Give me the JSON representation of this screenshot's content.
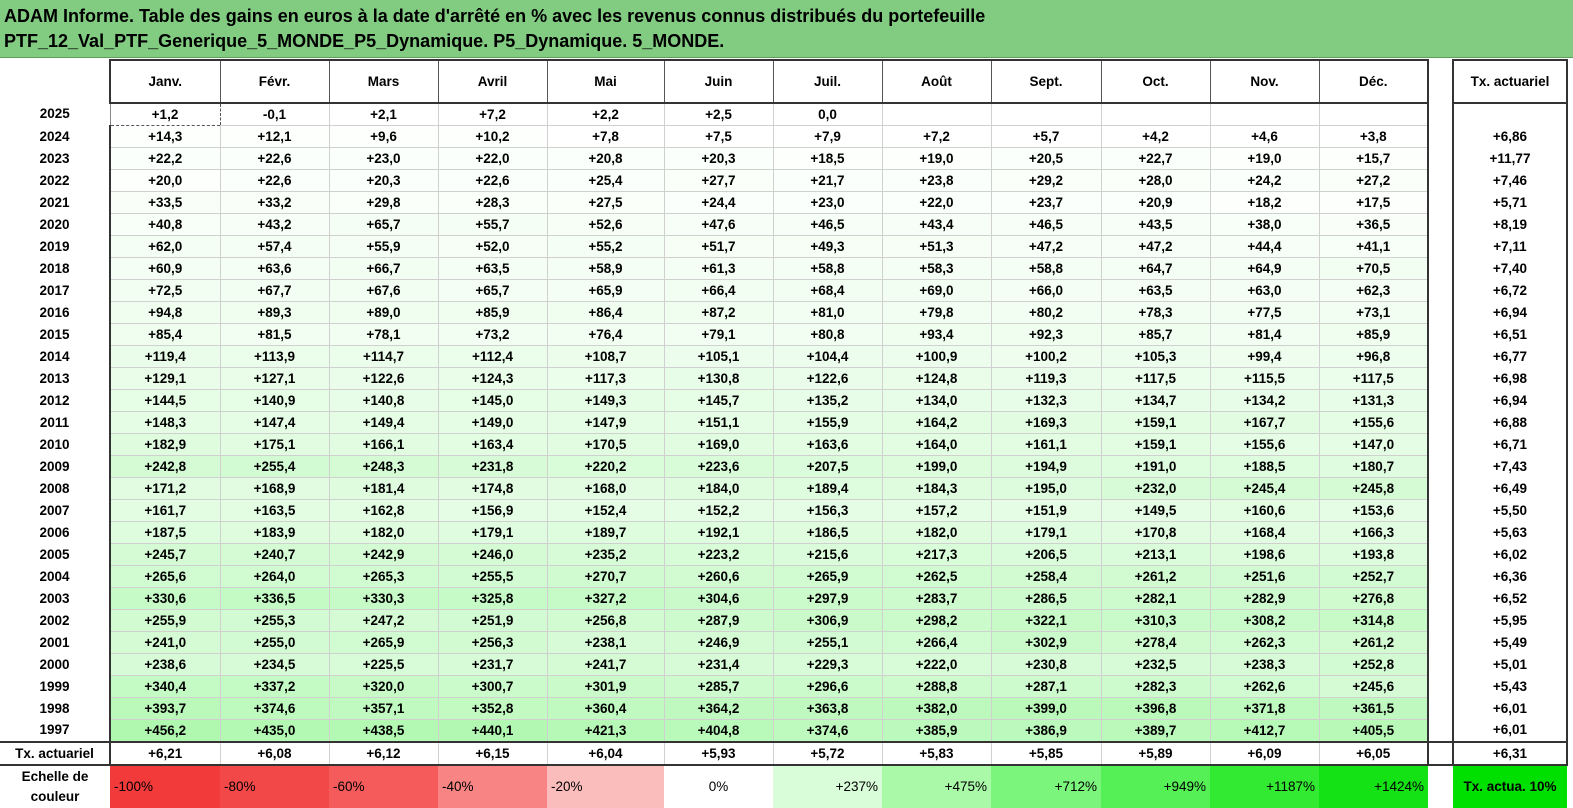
{
  "title": {
    "line1": "ADAM Informe. Table des gains en euros à la date d'arrêté en % avec les revenus connus distribués du portefeuille",
    "line2": "PTF_12_Val_PTF_Generique_5_MONDE_P5_Dynamique. P5_Dynamique. 5_MONDE."
  },
  "months": [
    "Janv.",
    "Févr.",
    "Mars",
    "Avril",
    "Mai",
    "Juin",
    "Juil.",
    "Août",
    "Sept.",
    "Oct.",
    "Nov.",
    "Déc."
  ],
  "actuarial_header": "Tx. actuariel",
  "rows": [
    {
      "year": "2025",
      "values": [
        "+1,2",
        "-0,1",
        "+2,1",
        "+7,2",
        "+2,2",
        "+2,5",
        "0,0",
        "",
        "",
        "",
        "",
        ""
      ],
      "rate": ""
    },
    {
      "year": "2024",
      "values": [
        "+14,3",
        "+12,1",
        "+9,6",
        "+10,2",
        "+7,8",
        "+7,5",
        "+7,9",
        "+7,2",
        "+5,7",
        "+4,2",
        "+4,6",
        "+3,8"
      ],
      "rate": "+6,86"
    },
    {
      "year": "2023",
      "values": [
        "+22,2",
        "+22,6",
        "+23,0",
        "+22,0",
        "+20,8",
        "+20,3",
        "+18,5",
        "+19,0",
        "+20,5",
        "+22,7",
        "+19,0",
        "+15,7"
      ],
      "rate": "+11,77"
    },
    {
      "year": "2022",
      "values": [
        "+20,0",
        "+22,6",
        "+20,3",
        "+22,6",
        "+25,4",
        "+27,7",
        "+21,7",
        "+23,8",
        "+29,2",
        "+28,0",
        "+24,2",
        "+27,2"
      ],
      "rate": "+7,46"
    },
    {
      "year": "2021",
      "values": [
        "+33,5",
        "+33,2",
        "+29,8",
        "+28,3",
        "+27,5",
        "+24,4",
        "+23,0",
        "+22,0",
        "+23,7",
        "+20,9",
        "+18,2",
        "+17,5"
      ],
      "rate": "+5,71"
    },
    {
      "year": "2020",
      "values": [
        "+40,8",
        "+43,2",
        "+65,7",
        "+55,7",
        "+52,6",
        "+47,6",
        "+46,5",
        "+43,4",
        "+46,5",
        "+43,5",
        "+38,0",
        "+36,5"
      ],
      "rate": "+8,19"
    },
    {
      "year": "2019",
      "values": [
        "+62,0",
        "+57,4",
        "+55,9",
        "+52,0",
        "+55,2",
        "+51,7",
        "+49,3",
        "+51,3",
        "+47,2",
        "+47,2",
        "+44,4",
        "+41,1"
      ],
      "rate": "+7,11"
    },
    {
      "year": "2018",
      "values": [
        "+60,9",
        "+63,6",
        "+66,7",
        "+63,5",
        "+58,9",
        "+61,3",
        "+58,8",
        "+58,3",
        "+58,8",
        "+64,7",
        "+64,9",
        "+70,5"
      ],
      "rate": "+7,40"
    },
    {
      "year": "2017",
      "values": [
        "+72,5",
        "+67,7",
        "+67,6",
        "+65,7",
        "+65,9",
        "+66,4",
        "+68,4",
        "+69,0",
        "+66,0",
        "+63,5",
        "+63,0",
        "+62,3"
      ],
      "rate": "+6,72"
    },
    {
      "year": "2016",
      "values": [
        "+94,8",
        "+89,3",
        "+89,0",
        "+85,9",
        "+86,4",
        "+87,2",
        "+81,0",
        "+79,8",
        "+80,2",
        "+78,3",
        "+77,5",
        "+73,1"
      ],
      "rate": "+6,94"
    },
    {
      "year": "2015",
      "values": [
        "+85,4",
        "+81,5",
        "+78,1",
        "+73,2",
        "+76,4",
        "+79,1",
        "+80,8",
        "+93,4",
        "+92,3",
        "+85,7",
        "+81,4",
        "+85,9"
      ],
      "rate": "+6,51"
    },
    {
      "year": "2014",
      "values": [
        "+119,4",
        "+113,9",
        "+114,7",
        "+112,4",
        "+108,7",
        "+105,1",
        "+104,4",
        "+100,9",
        "+100,2",
        "+105,3",
        "+99,4",
        "+96,8"
      ],
      "rate": "+6,77"
    },
    {
      "year": "2013",
      "values": [
        "+129,1",
        "+127,1",
        "+122,6",
        "+124,3",
        "+117,3",
        "+130,8",
        "+122,6",
        "+124,8",
        "+119,3",
        "+117,5",
        "+115,5",
        "+117,5"
      ],
      "rate": "+6,98"
    },
    {
      "year": "2012",
      "values": [
        "+144,5",
        "+140,9",
        "+140,8",
        "+145,0",
        "+149,3",
        "+145,7",
        "+135,2",
        "+134,0",
        "+132,3",
        "+134,7",
        "+134,2",
        "+131,3"
      ],
      "rate": "+6,94"
    },
    {
      "year": "2011",
      "values": [
        "+148,3",
        "+147,4",
        "+149,4",
        "+149,0",
        "+147,9",
        "+151,1",
        "+155,9",
        "+164,2",
        "+169,3",
        "+159,1",
        "+167,7",
        "+155,6"
      ],
      "rate": "+6,88"
    },
    {
      "year": "2010",
      "values": [
        "+182,9",
        "+175,1",
        "+166,1",
        "+163,4",
        "+170,5",
        "+169,0",
        "+163,6",
        "+164,0",
        "+161,1",
        "+159,1",
        "+155,6",
        "+147,0"
      ],
      "rate": "+6,71"
    },
    {
      "year": "2009",
      "values": [
        "+242,8",
        "+255,4",
        "+248,3",
        "+231,8",
        "+220,2",
        "+223,6",
        "+207,5",
        "+199,0",
        "+194,9",
        "+191,0",
        "+188,5",
        "+180,7"
      ],
      "rate": "+7,43"
    },
    {
      "year": "2008",
      "values": [
        "+171,2",
        "+168,9",
        "+181,4",
        "+174,8",
        "+168,0",
        "+184,0",
        "+189,4",
        "+184,3",
        "+195,0",
        "+232,0",
        "+245,4",
        "+245,8"
      ],
      "rate": "+6,49"
    },
    {
      "year": "2007",
      "values": [
        "+161,7",
        "+163,5",
        "+162,8",
        "+156,9",
        "+152,4",
        "+152,2",
        "+156,3",
        "+157,2",
        "+151,9",
        "+149,5",
        "+160,6",
        "+153,6"
      ],
      "rate": "+5,50"
    },
    {
      "year": "2006",
      "values": [
        "+187,5",
        "+183,9",
        "+182,0",
        "+179,1",
        "+189,7",
        "+192,1",
        "+186,5",
        "+182,0",
        "+179,1",
        "+170,8",
        "+168,4",
        "+166,3"
      ],
      "rate": "+5,63"
    },
    {
      "year": "2005",
      "values": [
        "+245,7",
        "+240,7",
        "+242,9",
        "+246,0",
        "+235,2",
        "+223,2",
        "+215,6",
        "+217,3",
        "+206,5",
        "+213,1",
        "+198,6",
        "+193,8"
      ],
      "rate": "+6,02"
    },
    {
      "year": "2004",
      "values": [
        "+265,6",
        "+264,0",
        "+265,3",
        "+255,5",
        "+270,7",
        "+260,6",
        "+265,9",
        "+262,5",
        "+258,4",
        "+261,2",
        "+251,6",
        "+252,7"
      ],
      "rate": "+6,36"
    },
    {
      "year": "2003",
      "values": [
        "+330,6",
        "+336,5",
        "+330,3",
        "+325,8",
        "+327,2",
        "+304,6",
        "+297,9",
        "+283,7",
        "+286,5",
        "+282,1",
        "+282,9",
        "+276,8"
      ],
      "rate": "+6,52"
    },
    {
      "year": "2002",
      "values": [
        "+255,9",
        "+255,3",
        "+247,2",
        "+251,9",
        "+256,8",
        "+287,9",
        "+306,9",
        "+298,2",
        "+322,1",
        "+310,3",
        "+308,2",
        "+314,8"
      ],
      "rate": "+5,95"
    },
    {
      "year": "2001",
      "values": [
        "+241,0",
        "+255,0",
        "+265,9",
        "+256,3",
        "+238,1",
        "+246,9",
        "+255,1",
        "+266,4",
        "+302,9",
        "+278,4",
        "+262,3",
        "+261,2"
      ],
      "rate": "+5,49"
    },
    {
      "year": "2000",
      "values": [
        "+238,6",
        "+234,5",
        "+225,5",
        "+231,7",
        "+241,7",
        "+231,4",
        "+229,3",
        "+222,0",
        "+230,8",
        "+232,5",
        "+238,3",
        "+252,8"
      ],
      "rate": "+5,01"
    },
    {
      "year": "1999",
      "values": [
        "+340,4",
        "+337,2",
        "+320,0",
        "+300,7",
        "+301,9",
        "+285,7",
        "+296,6",
        "+288,8",
        "+287,1",
        "+282,3",
        "+262,6",
        "+245,6"
      ],
      "rate": "+5,43"
    },
    {
      "year": "1998",
      "values": [
        "+393,7",
        "+374,6",
        "+357,1",
        "+352,8",
        "+360,4",
        "+364,2",
        "+363,8",
        "+382,0",
        "+399,0",
        "+396,8",
        "+371,8",
        "+361,5"
      ],
      "rate": "+6,01"
    },
    {
      "year": "1997",
      "values": [
        "+456,2",
        "+435,0",
        "+438,5",
        "+440,1",
        "+421,3",
        "+404,8",
        "+374,6",
        "+385,9",
        "+386,9",
        "+389,7",
        "+412,7",
        "+405,5"
      ],
      "rate": "+6,01"
    }
  ],
  "tx_row": {
    "label": "Tx. actuariel",
    "values": [
      "+6,21",
      "+6,08",
      "+6,12",
      "+6,15",
      "+6,04",
      "+5,93",
      "+5,72",
      "+5,83",
      "+5,85",
      "+5,89",
      "+6,09",
      "+6,05"
    ],
    "rate": "+6,31"
  },
  "scale": {
    "label": "Echelle de couleur",
    "items": [
      {
        "text": "-100%",
        "color": "#f23a3a"
      },
      {
        "text": "-80%",
        "color": "#f34848"
      },
      {
        "text": "-60%",
        "color": "#f55b5b"
      },
      {
        "text": "-40%",
        "color": "#f88484"
      },
      {
        "text": "-20%",
        "color": "#fbbcbc"
      },
      {
        "text": "0%",
        "color": "#ffffff"
      },
      {
        "text": "+237%",
        "color": "#d8fdd8"
      },
      {
        "text": "+475%",
        "color": "#a9f9a9"
      },
      {
        "text": "+712%",
        "color": "#7cf57c"
      },
      {
        "text": "+949%",
        "color": "#55f055"
      },
      {
        "text": "+1187%",
        "color": "#33ea33"
      },
      {
        "text": "+1424%",
        "color": "#14e214"
      }
    ],
    "legend": "Tx. actua. 10%",
    "legend_color": "#00e000"
  },
  "colors": {
    "title_bg": "#82cc82"
  }
}
